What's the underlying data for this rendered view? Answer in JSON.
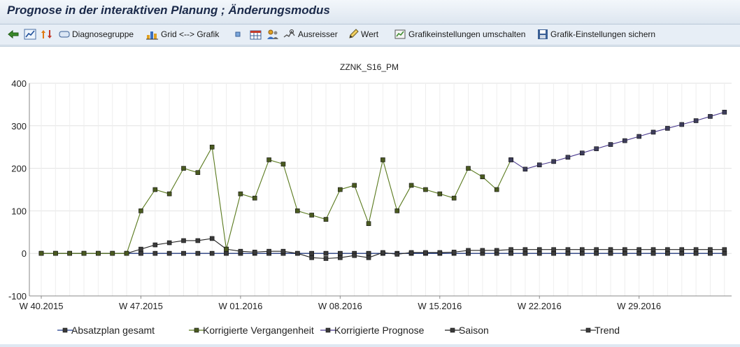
{
  "window": {
    "title": "Prognose in der interaktiven Planung  ; Änderungsmodus"
  },
  "toolbar": {
    "items": [
      {
        "icon": "back-arrow-icon",
        "label": ""
      },
      {
        "icon": "line-chart-icon",
        "label": ""
      },
      {
        "icon": "sort-arrows-icon",
        "label": ""
      },
      {
        "icon": "diagnose-group-icon",
        "label": "Diagnosegruppe"
      },
      {
        "icon": "grid-chart-toggle-icon",
        "label": "Grid <--> Grafik"
      },
      {
        "icon": "small-square-icon",
        "label": ""
      },
      {
        "icon": "calendar-table-icon",
        "label": ""
      },
      {
        "icon": "people-icon",
        "label": ""
      },
      {
        "icon": "outlier-icon",
        "label": "Ausreisser"
      },
      {
        "icon": "pencil-icon",
        "label": "Wert"
      },
      {
        "icon": "graphic-settings-icon",
        "label": "Grafikeinstellungen umschalten"
      },
      {
        "icon": "save-disk-icon",
        "label": "Grafik-Einstellungen sichern"
      }
    ]
  },
  "chart_data": {
    "type": "line",
    "title": "ZZNK_S16_PM",
    "ylim": [
      -100,
      400
    ],
    "yticks": [
      -100,
      0,
      100,
      200,
      300,
      400
    ],
    "xtick_labels": [
      "W 40.2015",
      "W 47.2015",
      "W 01.2016",
      "W 08.2016",
      "W 15.2016",
      "W 22.2016",
      "W 29.2016"
    ],
    "xtick_index": [
      0,
      7,
      14,
      21,
      28,
      35,
      42
    ],
    "n_points": 49,
    "grid": true,
    "legend_position": "bottom",
    "colors": {
      "absatzplan": "#1f3a8a",
      "vergangenheit": "#5a7a1e",
      "prognose": "#4b3b8f",
      "saison": "#222222",
      "trend": "#333333",
      "marker_fill": "#3a3a3a"
    },
    "series": [
      {
        "name": "Absatzplan gesamt",
        "key": "absatzplan",
        "values": [
          0,
          0,
          0,
          0,
          0,
          0,
          0,
          0,
          0,
          0,
          0,
          0,
          0,
          0,
          0,
          0,
          0,
          0,
          0,
          0,
          0,
          0,
          0,
          0,
          0,
          0,
          0,
          0,
          0,
          0,
          0,
          0,
          0,
          0,
          0,
          0,
          0,
          0,
          0,
          0,
          0,
          0,
          0,
          0,
          0,
          0,
          0,
          0,
          0
        ]
      },
      {
        "name": "Korrigierte Vergangenheit",
        "key": "vergangenheit",
        "values": [
          0,
          0,
          0,
          0,
          0,
          0,
          0,
          100,
          150,
          140,
          200,
          190,
          250,
          10,
          140,
          130,
          220,
          210,
          100,
          90,
          80,
          150,
          160,
          70,
          220,
          100,
          160,
          150,
          140,
          130,
          200,
          180,
          150,
          220,
          null,
          null,
          null,
          null,
          null,
          null,
          null,
          null,
          null,
          null,
          null,
          null,
          null,
          null,
          null
        ]
      },
      {
        "name": "Korrigierte Prognose",
        "key": "prognose",
        "values": [
          null,
          null,
          null,
          null,
          null,
          null,
          null,
          null,
          null,
          null,
          null,
          null,
          null,
          null,
          null,
          null,
          null,
          null,
          null,
          null,
          null,
          null,
          null,
          null,
          null,
          null,
          null,
          null,
          null,
          null,
          null,
          null,
          null,
          220,
          198,
          208,
          216,
          226,
          236,
          246,
          256,
          265,
          275,
          285,
          294,
          303,
          312,
          322,
          332
        ]
      },
      {
        "name": "Saison",
        "key": "saison",
        "values": [
          0,
          0,
          0,
          0,
          0,
          0,
          0,
          10,
          20,
          25,
          30,
          30,
          35,
          10,
          5,
          3,
          5,
          5,
          0,
          -10,
          -12,
          -10,
          -5,
          -10,
          2,
          -2,
          2,
          2,
          2,
          3,
          7,
          7,
          7,
          9,
          9,
          9,
          9,
          9,
          9,
          9,
          9,
          9,
          9,
          9,
          9,
          9,
          9,
          9,
          9
        ]
      },
      {
        "name": "Trend",
        "key": "trend",
        "values": [
          0,
          0,
          0,
          0,
          0,
          0,
          0,
          0,
          0,
          0,
          0,
          0,
          0,
          0,
          0,
          0,
          0,
          0,
          0,
          0,
          0,
          0,
          0,
          0,
          0,
          0,
          0,
          0,
          0,
          0,
          0,
          0,
          0,
          0,
          0,
          0,
          0,
          0,
          0,
          0,
          0,
          0,
          0,
          0,
          0,
          0,
          0,
          0,
          0
        ]
      }
    ]
  }
}
